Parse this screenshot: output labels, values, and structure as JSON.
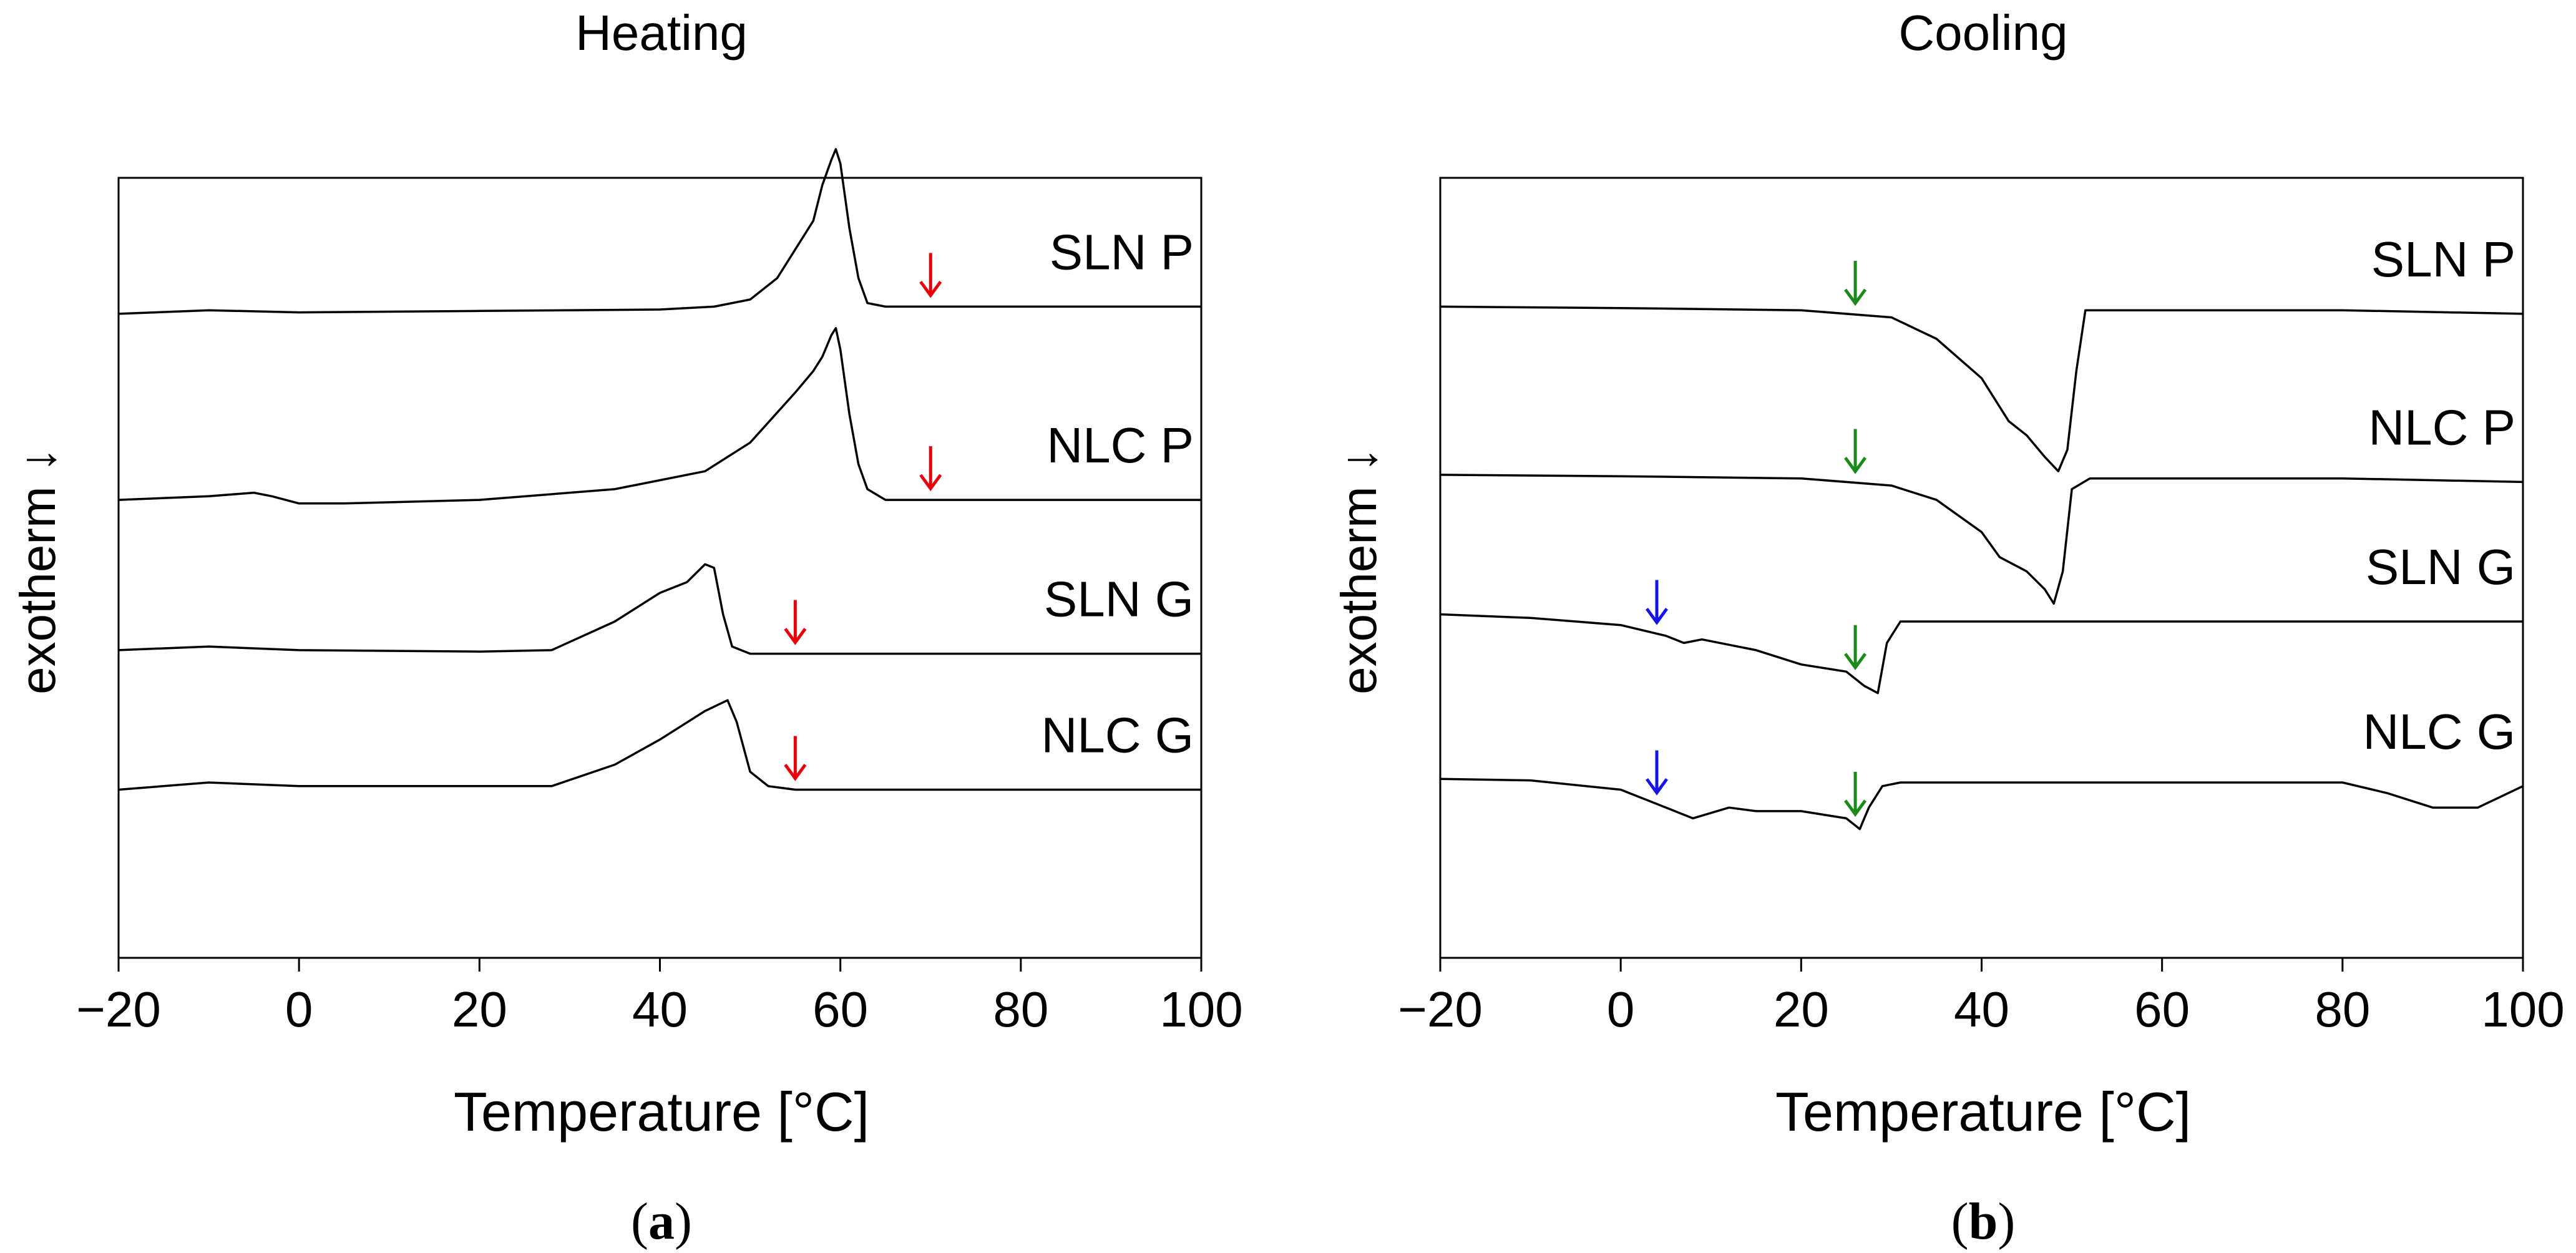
{
  "chart_data": [
    {
      "type": "line",
      "title": "Heating",
      "xlabel": "Temperature [°C]",
      "ylabel": "exotherm ↓",
      "xlim": [
        -20,
        100
      ],
      "xticks": [
        -20,
        0,
        20,
        40,
        60,
        80,
        100
      ],
      "xtick_labels": [
        "−20",
        "0",
        "20",
        "40",
        "60",
        "80",
        "100"
      ],
      "ylim": [
        -1.2,
        9.7
      ],
      "yticks": "none",
      "panel_label": "a",
      "series": [
        {
          "name": "SLN P",
          "x": [
            -20,
            -10,
            0,
            20,
            40,
            46,
            50,
            53,
            55,
            57,
            58,
            59,
            59.5,
            60,
            61,
            62,
            63,
            65,
            70,
            80,
            100
          ],
          "y": [
            7.8,
            7.85,
            7.82,
            7.84,
            7.86,
            7.9,
            8.0,
            8.3,
            8.7,
            9.1,
            9.6,
            9.95,
            10.1,
            9.9,
            9.0,
            8.3,
            7.95,
            7.9,
            7.9,
            7.9,
            7.9
          ]
        },
        {
          "name": "NLC P",
          "x": [
            -20,
            -10,
            -5,
            -3,
            0,
            5,
            20,
            35,
            45,
            50,
            55,
            57,
            58,
            59,
            59.5,
            60,
            61,
            62,
            63,
            65,
            70,
            80,
            100
          ],
          "y": [
            5.2,
            5.25,
            5.3,
            5.25,
            5.15,
            5.15,
            5.2,
            5.35,
            5.6,
            6.0,
            6.7,
            7.0,
            7.2,
            7.5,
            7.6,
            7.3,
            6.4,
            5.7,
            5.35,
            5.2,
            5.2,
            5.2,
            5.2
          ]
        },
        {
          "name": "SLN G",
          "x": [
            -20,
            -10,
            0,
            20,
            28,
            35,
            40,
            43,
            45,
            46,
            47,
            48,
            50,
            55,
            60,
            80,
            100
          ],
          "y": [
            3.1,
            3.15,
            3.1,
            3.08,
            3.1,
            3.5,
            3.9,
            4.05,
            4.3,
            4.25,
            3.6,
            3.15,
            3.05,
            3.05,
            3.05,
            3.05,
            3.05
          ]
        },
        {
          "name": "NLC G",
          "x": [
            -20,
            -10,
            0,
            20,
            28,
            35,
            40,
            45,
            47.5,
            48.5,
            50,
            52,
            55,
            60,
            80,
            100
          ],
          "y": [
            1.15,
            1.25,
            1.2,
            1.2,
            1.2,
            1.5,
            1.85,
            2.25,
            2.4,
            2.1,
            1.4,
            1.2,
            1.15,
            1.15,
            1.15,
            1.15
          ]
        }
      ],
      "annotations": [
        {
          "type": "arrow",
          "color": "#e8000b",
          "x": 70,
          "series": "SLN P"
        },
        {
          "type": "arrow",
          "color": "#e8000b",
          "x": 70,
          "series": "NLC P"
        },
        {
          "type": "arrow",
          "color": "#e8000b",
          "x": 55,
          "series": "SLN G"
        },
        {
          "type": "arrow",
          "color": "#e8000b",
          "x": 55,
          "series": "NLC G"
        }
      ]
    },
    {
      "type": "line",
      "title": "Cooling",
      "xlabel": "Temperature [°C]",
      "ylabel": "exotherm ↓",
      "xlim": [
        -20,
        100
      ],
      "xticks": [
        -20,
        0,
        20,
        40,
        60,
        80,
        100
      ],
      "xtick_labels": [
        "−20",
        "0",
        "20",
        "40",
        "60",
        "80",
        "100"
      ],
      "ylim": [
        -1.2,
        9.7
      ],
      "yticks": "none",
      "panel_label": "b",
      "series": [
        {
          "name": "SLN P",
          "x": [
            -20,
            0,
            20,
            30,
            35,
            40,
            43,
            45,
            47,
            48.5,
            49.5,
            50.5,
            51.5,
            55,
            80,
            100
          ],
          "y": [
            7.9,
            7.88,
            7.85,
            7.75,
            7.45,
            6.9,
            6.3,
            6.1,
            5.8,
            5.6,
            5.9,
            7.0,
            7.85,
            7.85,
            7.85,
            7.8
          ]
        },
        {
          "name": "NLC P",
          "x": [
            -20,
            0,
            20,
            30,
            35,
            40,
            42,
            45,
            47,
            48,
            49,
            50,
            52,
            60,
            80,
            100
          ],
          "y": [
            5.55,
            5.53,
            5.5,
            5.4,
            5.2,
            4.75,
            4.4,
            4.2,
            3.95,
            3.75,
            4.2,
            5.35,
            5.5,
            5.5,
            5.5,
            5.45
          ]
        },
        {
          "name": "SLN G",
          "x": [
            -20,
            -10,
            0,
            5,
            7,
            9,
            15,
            20,
            25,
            27,
            28.5,
            29.5,
            31,
            40,
            80,
            100
          ],
          "y": [
            3.6,
            3.55,
            3.45,
            3.3,
            3.2,
            3.25,
            3.1,
            2.9,
            2.8,
            2.6,
            2.5,
            3.2,
            3.5,
            3.5,
            3.5,
            3.5
          ]
        },
        {
          "name": "NLC G",
          "x": [
            -20,
            -10,
            0,
            4,
            8,
            12,
            15,
            20,
            25,
            26.5,
            27.5,
            29,
            31,
            40,
            80,
            85,
            90,
            95,
            100
          ],
          "y": [
            1.3,
            1.28,
            1.15,
            0.95,
            0.75,
            0.9,
            0.85,
            0.85,
            0.75,
            0.6,
            0.9,
            1.2,
            1.25,
            1.25,
            1.25,
            1.1,
            0.9,
            0.9,
            1.2
          ]
        }
      ],
      "annotations": [
        {
          "type": "arrow",
          "color": "#1a8a1a",
          "x": 26,
          "series": "SLN P"
        },
        {
          "type": "arrow",
          "color": "#1a8a1a",
          "x": 26,
          "series": "NLC P"
        },
        {
          "type": "arrow",
          "color": "#1a8a1a",
          "x": 26,
          "series": "SLN G"
        },
        {
          "type": "arrow",
          "color": "#1a8a1a",
          "x": 26,
          "series": "NLC G"
        },
        {
          "type": "arrow",
          "color": "#1515e6",
          "x": 4,
          "series": "SLN G"
        },
        {
          "type": "arrow",
          "color": "#1515e6",
          "x": 4,
          "series": "NLC G"
        }
      ]
    }
  ]
}
